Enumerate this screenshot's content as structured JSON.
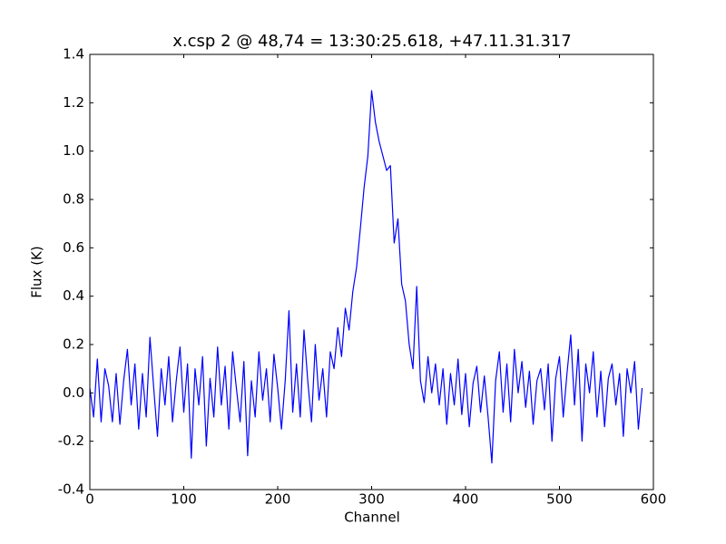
{
  "chart_data": {
    "type": "line",
    "title": "x.csp 2 @ 48,74 = 13:30:25.618, +47.11.31.317",
    "xlabel": "Channel",
    "ylabel": "Flux (K)",
    "color": "#0000ff",
    "x": [
      0,
      4,
      8,
      12,
      16,
      20,
      24,
      28,
      32,
      36,
      40,
      44,
      48,
      52,
      56,
      60,
      64,
      68,
      72,
      76,
      80,
      84,
      88,
      92,
      96,
      100,
      104,
      108,
      112,
      116,
      120,
      124,
      128,
      132,
      136,
      140,
      144,
      148,
      152,
      156,
      160,
      164,
      168,
      172,
      176,
      180,
      184,
      188,
      192,
      196,
      200,
      204,
      208,
      212,
      216,
      220,
      224,
      228,
      232,
      236,
      240,
      244,
      248,
      252,
      256,
      260,
      264,
      268,
      272,
      276,
      280,
      284,
      288,
      292,
      296,
      300,
      304,
      308,
      312,
      316,
      320,
      324,
      328,
      332,
      336,
      340,
      344,
      348,
      352,
      356,
      360,
      364,
      368,
      372,
      376,
      380,
      384,
      388,
      392,
      396,
      400,
      404,
      408,
      412,
      416,
      420,
      424,
      428,
      432,
      436,
      440,
      444,
      448,
      452,
      456,
      460,
      464,
      468,
      472,
      476,
      480,
      484,
      488,
      492,
      496,
      500,
      504,
      508,
      512,
      516,
      520,
      524,
      528,
      532,
      536,
      540,
      544,
      548,
      552,
      556,
      560,
      564,
      568,
      572,
      576,
      580,
      584,
      588
    ],
    "values": [
      0.02,
      -0.1,
      0.14,
      -0.12,
      0.1,
      0.03,
      -0.12,
      0.08,
      -0.13,
      0.05,
      0.18,
      -0.05,
      0.12,
      -0.15,
      0.08,
      -0.1,
      0.23,
      0.02,
      -0.18,
      0.1,
      -0.05,
      0.15,
      -0.12,
      0.05,
      0.19,
      -0.08,
      0.12,
      -0.27,
      0.1,
      -0.05,
      0.15,
      -0.22,
      0.06,
      -0.1,
      0.19,
      -0.05,
      0.11,
      -0.15,
      0.17,
      0.02,
      -0.12,
      0.13,
      -0.26,
      0.05,
      -0.1,
      0.17,
      -0.03,
      0.1,
      -0.12,
      0.16,
      0.02,
      -0.15,
      0.05,
      0.34,
      -0.08,
      0.12,
      -0.1,
      0.26,
      0.05,
      -0.12,
      0.2,
      -0.03,
      0.1,
      -0.1,
      0.17,
      0.1,
      0.27,
      0.15,
      0.35,
      0.26,
      0.42,
      0.52,
      0.68,
      0.85,
      0.98,
      1.25,
      1.12,
      1.04,
      0.98,
      0.92,
      0.94,
      0.62,
      0.72,
      0.45,
      0.38,
      0.2,
      0.1,
      0.44,
      0.05,
      -0.04,
      0.15,
      0.0,
      0.12,
      -0.05,
      0.1,
      -0.13,
      0.08,
      -0.05,
      0.14,
      -0.09,
      0.08,
      -0.14,
      0.04,
      0.11,
      -0.08,
      0.07,
      -0.1,
      -0.29,
      0.05,
      0.17,
      -0.08,
      0.12,
      -0.12,
      0.18,
      0.0,
      0.13,
      -0.06,
      0.09,
      -0.13,
      0.05,
      0.1,
      -0.07,
      0.12,
      -0.2,
      0.06,
      0.15,
      -0.1,
      0.08,
      0.24,
      -0.05,
      0.18,
      -0.2,
      0.12,
      0.0,
      0.17,
      -0.1,
      0.09,
      -0.14,
      0.06,
      0.12,
      -0.05,
      0.08,
      -0.18,
      0.1,
      0.0,
      0.13,
      -0.15,
      0.02
    ],
    "xlim": [
      0,
      600
    ],
    "xticks": [
      0,
      100,
      200,
      300,
      400,
      500,
      600
    ],
    "ylim": [
      -0.4,
      1.4
    ],
    "yticks": [
      -0.4,
      -0.2,
      {
        "value": 0,
        "label": "0.0"
      },
      0.2,
      0.4,
      0.6,
      0.8,
      {
        "value": 1,
        "label": "1.0"
      },
      1.2,
      1.4
    ],
    "grid": false
  }
}
